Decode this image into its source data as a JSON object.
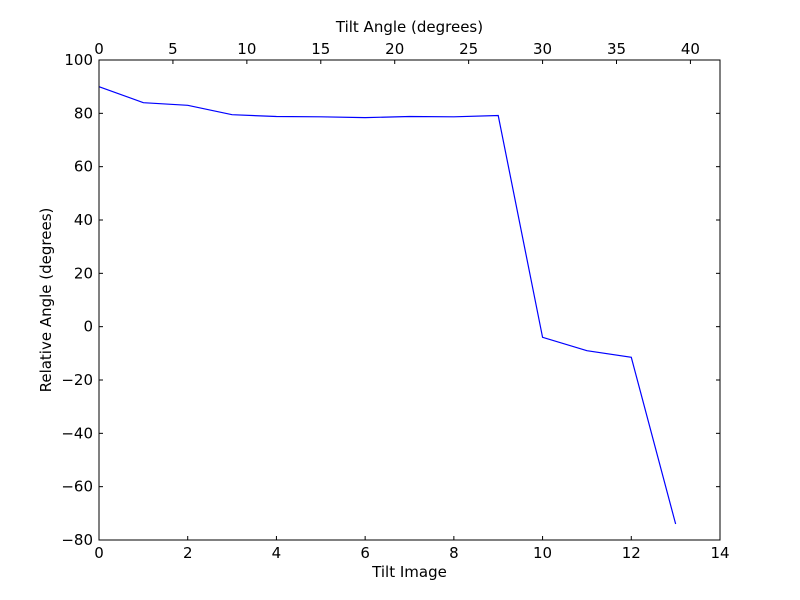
{
  "chart_data": {
    "type": "line",
    "title": "",
    "xlabel": "Tilt Image",
    "ylabel": "Relative Angle (degrees)",
    "top_xlabel": "Tilt Angle (degrees)",
    "xlim": [
      0,
      14
    ],
    "ylim": [
      -80,
      100
    ],
    "top_xlim": [
      0,
      42
    ],
    "x_ticks": [
      0,
      2,
      4,
      6,
      8,
      10,
      12,
      14
    ],
    "x_tick_labels": [
      "0",
      "2",
      "4",
      "6",
      "8",
      "10",
      "12",
      "14"
    ],
    "y_ticks": [
      100,
      80,
      60,
      40,
      20,
      0,
      -20,
      -40,
      -60,
      -80
    ],
    "y_tick_labels": [
      "100",
      "80",
      "60",
      "40",
      "20",
      "0",
      "−20",
      "−40",
      "−60",
      "−80"
    ],
    "top_x_ticks": [
      0,
      5,
      10,
      15,
      20,
      25,
      30,
      35,
      40
    ],
    "top_x_tick_labels": [
      "0",
      "5",
      "10",
      "15",
      "20",
      "25",
      "30",
      "35",
      "40"
    ],
    "grid": false,
    "series": [
      {
        "color": "#0000ff",
        "x": [
          0,
          1,
          2,
          3,
          4,
          5,
          6,
          7,
          8,
          9,
          10,
          11,
          12,
          13
        ],
        "y": [
          90,
          84,
          83,
          79.5,
          78.8,
          78.7,
          78.4,
          78.8,
          78.7,
          79.2,
          -4,
          -9,
          -11.5,
          -74
        ]
      }
    ]
  }
}
